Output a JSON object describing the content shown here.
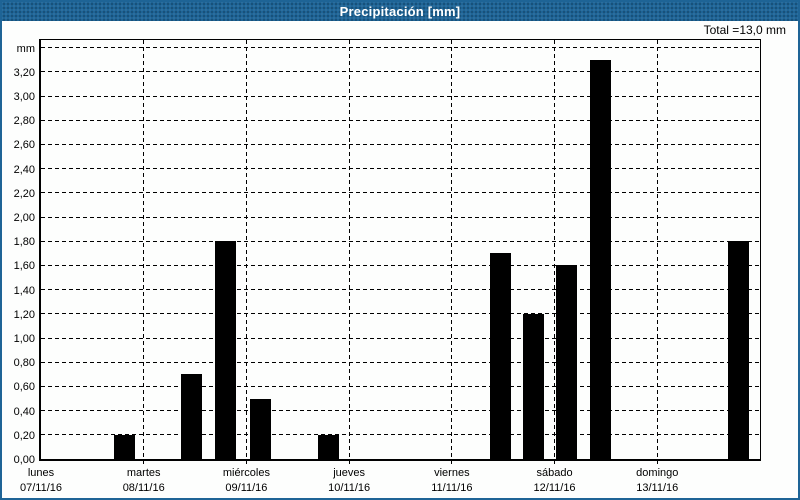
{
  "window": {
    "title": "Precipitación [mm]",
    "total_label": "Total =13,0 mm"
  },
  "colors": {
    "titlebar_blue": "#1e6496",
    "window_border_blue": "#1e6496",
    "bar_color": "#000000",
    "background": "#fdfefd",
    "title_text": "#ffffff"
  },
  "chart_data": {
    "type": "bar",
    "title": "Precipitación [mm]",
    "ylabel": "mm",
    "total": "13,0 mm",
    "grid": true,
    "legend": false,
    "y_axis": {
      "min": 0,
      "max": 3.4,
      "step": 0.2,
      "tick_labels": [
        "0,00",
        "0,20",
        "0,40",
        "0,60",
        "0,80",
        "1,00",
        "1,20",
        "1,40",
        "1,60",
        "1,80",
        "2,00",
        "2,20",
        "2,40",
        "2,60",
        "2,80",
        "3,00",
        "3,20"
      ],
      "top_label": "mm"
    },
    "x_axis": {
      "days": [
        {
          "name": "lunes",
          "date": "07/11/16"
        },
        {
          "name": "martes",
          "date": "08/11/16"
        },
        {
          "name": "miércoles",
          "date": "09/11/16"
        },
        {
          "name": "jueves",
          "date": "10/11/16"
        },
        {
          "name": "viernes",
          "date": "11/11/16"
        },
        {
          "name": "sábado",
          "date": "12/11/16"
        },
        {
          "name": "domingo",
          "date": "13/11/16"
        }
      ]
    },
    "bar_width_days": 0.2,
    "bars": [
      {
        "day": "lunes 07/11/16",
        "day_offset": 0.81,
        "value": 0.2,
        "label": "0,20"
      },
      {
        "day": "martes 08/11/16",
        "day_offset": 1.47,
        "value": 0.7,
        "label": "0,70"
      },
      {
        "day": "martes 08/11/16",
        "day_offset": 1.8,
        "value": 1.8,
        "label": "1,80"
      },
      {
        "day": "miércoles 09/11/16",
        "day_offset": 2.14,
        "value": 0.5,
        "label": "0,50"
      },
      {
        "day": "miércoles 09/11/16",
        "day_offset": 2.8,
        "value": 0.2,
        "label": "0,20"
      },
      {
        "day": "viernes 11/11/16",
        "day_offset": 4.47,
        "value": 1.7,
        "label": "1,70"
      },
      {
        "day": "viernes 11/11/16",
        "day_offset": 4.79,
        "value": 1.2,
        "label": "1,20"
      },
      {
        "day": "sábado 12/11/16",
        "day_offset": 5.12,
        "value": 1.6,
        "label": "1,60"
      },
      {
        "day": "sábado 12/11/16",
        "day_offset": 5.45,
        "value": 3.3,
        "label": "3,30"
      },
      {
        "day": "domingo 13/11/16",
        "day_offset": 6.79,
        "value": 1.8,
        "label": "1,80"
      }
    ]
  }
}
